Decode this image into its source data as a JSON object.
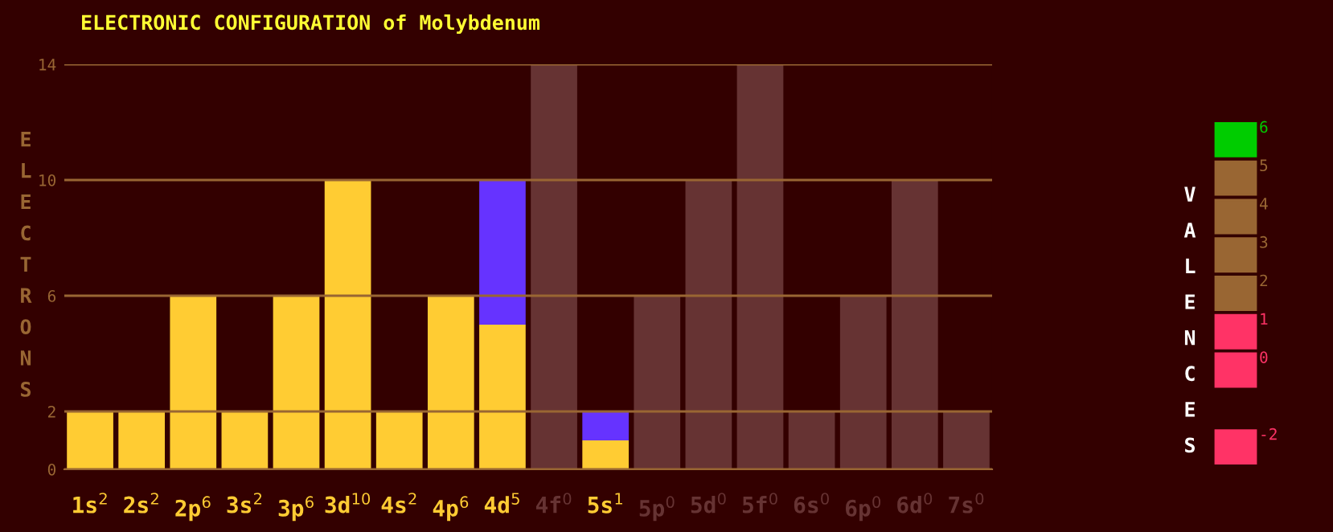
{
  "chart_data": [
    {
      "type": "bar",
      "title": "ELECTRONIC CONFIGURATION of Molybdenum",
      "ylabel": "ELECTRONS",
      "stacked": true,
      "categories": [
        "1s$^{2}$",
        "2s$^{2}$",
        "2p$^{6}$",
        "3s$^{2}$",
        "3p$^{6}$",
        "3d$^{10}$",
        "4s$^{2}$",
        "4p$^{6}$",
        "4d$^{5}$",
        "4f$^{0}$",
        "5s$^{1}$",
        "5p$^{0}$",
        "5d$^{0}$",
        "5f$^{0}$",
        "6s$^{0}$",
        "6p$^{0}$",
        "6d$^{0}$",
        "7s$^{0}$"
      ],
      "series": [
        {
          "color": "#ffcc33",
          "values": [
            2,
            2,
            6,
            2,
            6,
            10,
            2,
            6,
            5,
            0,
            1,
            0,
            0,
            0,
            0,
            0,
            0,
            0
          ]
        },
        {
          "color": "#6633ff",
          "values": [
            0,
            0,
            0,
            0,
            0,
            0,
            0,
            0,
            5,
            0,
            1,
            0,
            0,
            0,
            0,
            0,
            0,
            0
          ]
        },
        {
          "color": "#663333",
          "values": [
            0,
            0,
            0,
            0,
            0,
            0,
            0,
            0,
            0,
            14,
            0,
            6,
            10,
            14,
            2,
            6,
            10,
            2
          ]
        }
      ],
      "ylim": [
        0,
        14
      ],
      "yticks": [
        0,
        2,
        6,
        10,
        14
      ],
      "grid": "y",
      "legend": false
    },
    {
      "type": "other",
      "title": "VALENCES",
      "categories": [
        "6",
        "5",
        "4",
        "3",
        "2",
        "1",
        "0",
        null,
        "-2"
      ],
      "colors": [
        "#00cc00",
        "#996633",
        "#996633",
        "#996633",
        "#996633",
        "#ff3366",
        "#ff3366",
        null,
        "#ff3366"
      ]
    }
  ]
}
